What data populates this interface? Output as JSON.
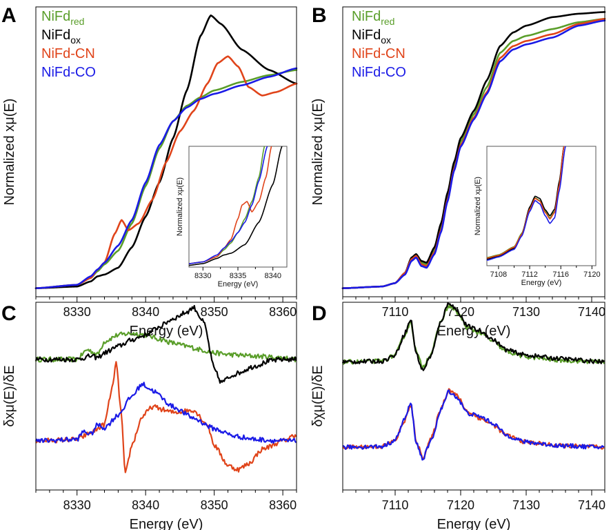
{
  "colors": {
    "NiFd_red": "#5a9e2a",
    "NiFd_ox": "#000000",
    "NiFd_CN": "#e0441a",
    "NiFd_CO": "#1a1ae6"
  },
  "legend": [
    {
      "key": "NiFd_red",
      "base": "NiFd",
      "sub": "red"
    },
    {
      "key": "NiFd_ox",
      "base": "NiFd",
      "sub": "ox"
    },
    {
      "key": "NiFd_CN",
      "base": "NiFd-CN",
      "sub": ""
    },
    {
      "key": "NiFd_CO",
      "base": "NiFd-CO",
      "sub": ""
    }
  ],
  "chart_data": [
    {
      "panel": "A",
      "type": "line",
      "xlabel": "Energy (eV)",
      "ylabel": "Normalized xμ(E)",
      "xlim": [
        8324,
        8362
      ],
      "ylim": [
        -0.05,
        1.65
      ],
      "xticks": [
        8330,
        8340,
        8350,
        8360
      ],
      "legend_position": "top-left",
      "series": [
        {
          "key": "NiFd_red",
          "x": [
            8324,
            8330,
            8332,
            8333,
            8334,
            8336,
            8338,
            8340,
            8342,
            8344,
            8346,
            8348,
            8350,
            8354,
            8358,
            8362
          ],
          "y": [
            0.0,
            0.02,
            0.06,
            0.1,
            0.14,
            0.22,
            0.38,
            0.6,
            0.82,
            0.98,
            1.07,
            1.12,
            1.16,
            1.21,
            1.25,
            1.28
          ]
        },
        {
          "key": "NiFd_ox",
          "x": [
            8324,
            8330,
            8332,
            8333,
            8334,
            8336,
            8338,
            8340,
            8342,
            8344,
            8346,
            8348,
            8349.5,
            8351,
            8354,
            8358,
            8362
          ],
          "y": [
            0.0,
            0.01,
            0.04,
            0.07,
            0.08,
            0.12,
            0.24,
            0.42,
            0.62,
            0.88,
            1.16,
            1.48,
            1.6,
            1.55,
            1.4,
            1.28,
            1.2
          ]
        },
        {
          "key": "NiFd_CN",
          "x": [
            8324,
            8330,
            8332,
            8333,
            8334,
            8335.5,
            8336.5,
            8337.5,
            8339,
            8341,
            8343,
            8345,
            8347,
            8349,
            8350.5,
            8352,
            8353.5,
            8355,
            8357,
            8359,
            8362
          ],
          "y": [
            0.0,
            0.02,
            0.06,
            0.11,
            0.15,
            0.32,
            0.4,
            0.34,
            0.38,
            0.52,
            0.74,
            0.92,
            1.04,
            1.2,
            1.32,
            1.36,
            1.3,
            1.18,
            1.13,
            1.15,
            1.2
          ]
        },
        {
          "key": "NiFd_CO",
          "x": [
            8324,
            8330,
            8332,
            8333,
            8334,
            8336,
            8338,
            8340,
            8342,
            8344,
            8346,
            8348,
            8350,
            8354,
            8358,
            8362
          ],
          "y": [
            0.0,
            0.02,
            0.07,
            0.11,
            0.15,
            0.25,
            0.4,
            0.62,
            0.84,
            0.98,
            1.06,
            1.11,
            1.14,
            1.19,
            1.24,
            1.29
          ]
        }
      ],
      "inset": {
        "xlabel": "Energy (eV)",
        "ylabel": "Normalized xμ(E)",
        "xlim": [
          8328,
          8342
        ],
        "ylim": [
          0.0,
          0.7
        ],
        "xticks": [
          8330,
          8335,
          8340
        ],
        "series": [
          {
            "key": "NiFd_red",
            "x": [
              8328,
              8330,
              8332,
              8333,
              8334,
              8335,
              8336,
              8337,
              8338,
              8338.8
            ],
            "y": [
              0.02,
              0.03,
              0.06,
              0.1,
              0.14,
              0.2,
              0.28,
              0.38,
              0.52,
              0.7
            ]
          },
          {
            "key": "NiFd_ox",
            "x": [
              8328,
              8330,
              8332,
              8333,
              8334,
              8336,
              8338,
              8340,
              8341.3
            ],
            "y": [
              0.01,
              0.02,
              0.05,
              0.07,
              0.08,
              0.13,
              0.26,
              0.48,
              0.7
            ]
          },
          {
            "key": "NiFd_CN",
            "x": [
              8328,
              8330,
              8332,
              8333,
              8334,
              8335,
              8335.6,
              8336.3,
              8337,
              8338,
              8339,
              8339.8
            ],
            "y": [
              0.02,
              0.03,
              0.06,
              0.11,
              0.16,
              0.28,
              0.36,
              0.38,
              0.32,
              0.38,
              0.52,
              0.7
            ]
          },
          {
            "key": "NiFd_CO",
            "x": [
              8328,
              8330,
              8332,
              8333,
              8334,
              8335,
              8336,
              8337,
              8338,
              8339.2
            ],
            "y": [
              0.02,
              0.03,
              0.07,
              0.11,
              0.15,
              0.2,
              0.26,
              0.36,
              0.5,
              0.7
            ]
          }
        ]
      }
    },
    {
      "panel": "B",
      "type": "line",
      "xlabel": "Energy (eV)",
      "ylabel": "Normalized xμ(E)",
      "xlim": [
        7102,
        7142
      ],
      "ylim": [
        -0.05,
        1.65
      ],
      "xticks": [
        7110,
        7120,
        7130,
        7140
      ],
      "legend_position": "top-left",
      "series": [
        {
          "key": "NiFd_red",
          "x": [
            7102,
            7108,
            7110,
            7111.5,
            7112.5,
            7113.2,
            7114,
            7114.8,
            7116,
            7117,
            7118,
            7119,
            7120,
            7122,
            7124,
            7126,
            7128,
            7130,
            7134,
            7138,
            7142
          ],
          "y": [
            0.0,
            0.01,
            0.03,
            0.09,
            0.17,
            0.19,
            0.15,
            0.14,
            0.22,
            0.36,
            0.54,
            0.72,
            0.86,
            1.02,
            1.18,
            1.38,
            1.45,
            1.48,
            1.52,
            1.56,
            1.58
          ]
        },
        {
          "key": "NiFd_ox",
          "x": [
            7102,
            7108,
            7110,
            7111.5,
            7112.5,
            7113.2,
            7114,
            7114.8,
            7116,
            7117,
            7118,
            7119,
            7120,
            7122,
            7124,
            7126,
            7128,
            7130,
            7134,
            7138,
            7142
          ],
          "y": [
            0.0,
            0.01,
            0.03,
            0.09,
            0.18,
            0.2,
            0.16,
            0.15,
            0.24,
            0.38,
            0.56,
            0.74,
            0.88,
            1.04,
            1.22,
            1.42,
            1.5,
            1.54,
            1.59,
            1.61,
            1.62
          ]
        },
        {
          "key": "NiFd_CN",
          "x": [
            7102,
            7108,
            7110,
            7111.5,
            7112.5,
            7113.2,
            7114,
            7114.8,
            7116,
            7117,
            7118,
            7119,
            7120,
            7122,
            7124,
            7126,
            7128,
            7130,
            7134,
            7138,
            7142
          ],
          "y": [
            0.0,
            0.01,
            0.03,
            0.09,
            0.17,
            0.19,
            0.14,
            0.13,
            0.21,
            0.34,
            0.52,
            0.7,
            0.84,
            1.0,
            1.15,
            1.35,
            1.42,
            1.45,
            1.49,
            1.55,
            1.58
          ]
        },
        {
          "key": "NiFd_CO",
          "x": [
            7102,
            7108,
            7110,
            7111.5,
            7112.5,
            7113.2,
            7114,
            7114.8,
            7116,
            7117,
            7118,
            7119,
            7120,
            7122,
            7124,
            7126,
            7128,
            7130,
            7134,
            7138,
            7142
          ],
          "y": [
            0.0,
            0.01,
            0.03,
            0.08,
            0.16,
            0.18,
            0.13,
            0.12,
            0.2,
            0.33,
            0.51,
            0.69,
            0.83,
            0.99,
            1.14,
            1.33,
            1.4,
            1.43,
            1.47,
            1.54,
            1.57
          ]
        }
      ],
      "inset": {
        "xlabel": "Energy (eV)",
        "ylabel": "Normalized xμ(E)",
        "xlim": [
          7106.5,
          7120.5
        ],
        "ylim": [
          0.0,
          0.22
        ],
        "xticks": [
          7108,
          7112,
          7116,
          7120
        ],
        "series": [
          {
            "key": "NiFd_red",
            "x": [
              7106.5,
              7108,
              7110,
              7111,
              7112,
              7112.7,
              7113.3,
              7114,
              7114.6,
              7115.2,
              7115.8,
              7116.4
            ],
            "y": [
              0.015,
              0.02,
              0.035,
              0.06,
              0.105,
              0.125,
              0.12,
              0.1,
              0.088,
              0.1,
              0.15,
              0.22
            ]
          },
          {
            "key": "NiFd_ox",
            "x": [
              7106.5,
              7108,
              7110,
              7111,
              7112,
              7112.7,
              7113.3,
              7114,
              7114.6,
              7115.2,
              7115.8,
              7116.4
            ],
            "y": [
              0.012,
              0.018,
              0.032,
              0.058,
              0.108,
              0.128,
              0.124,
              0.103,
              0.092,
              0.104,
              0.155,
              0.22
            ]
          },
          {
            "key": "NiFd_CN",
            "x": [
              7106.5,
              7108,
              7110,
              7111,
              7112,
              7112.7,
              7113.3,
              7114,
              7114.6,
              7115.2,
              7115.8,
              7116.4
            ],
            "y": [
              0.014,
              0.019,
              0.034,
              0.058,
              0.104,
              0.124,
              0.119,
              0.098,
              0.086,
              0.098,
              0.148,
              0.22
            ]
          },
          {
            "key": "NiFd_CO",
            "x": [
              7106.5,
              7108,
              7110,
              7111,
              7112,
              7112.7,
              7113.3,
              7114,
              7114.6,
              7115.2,
              7115.8,
              7116.6
            ],
            "y": [
              0.01,
              0.016,
              0.03,
              0.055,
              0.1,
              0.12,
              0.114,
              0.092,
              0.078,
              0.088,
              0.138,
              0.22
            ]
          }
        ]
      }
    },
    {
      "panel": "C",
      "type": "line",
      "xlabel": "Energy (eV)",
      "ylabel": "δxμ(E)/δE",
      "xlim": [
        8324,
        8362
      ],
      "ylim": [
        -0.6,
        1.7
      ],
      "xticks": [
        8330,
        8340,
        8350,
        8360
      ],
      "series": [
        {
          "key": "NiFd_red",
          "x": [
            8324,
            8330,
            8331.5,
            8333,
            8334,
            8336,
            8338,
            8340,
            8342,
            8344,
            8346,
            8348,
            8350,
            8352,
            8356,
            8360,
            8362
          ],
          "y": [
            1.0,
            1.0,
            1.12,
            1.06,
            1.22,
            1.3,
            1.32,
            1.3,
            1.25,
            1.2,
            1.16,
            1.12,
            1.08,
            1.06,
            1.04,
            1.02,
            1.0
          ]
        },
        {
          "key": "NiFd_ox",
          "x": [
            8324,
            8330,
            8332,
            8333,
            8334,
            8336,
            8338,
            8340,
            8342,
            8344,
            8346,
            8347,
            8348.5,
            8350,
            8351,
            8353,
            8356,
            8358,
            8360,
            8362
          ],
          "y": [
            1.0,
            1.0,
            1.04,
            1.02,
            1.08,
            1.16,
            1.24,
            1.3,
            1.4,
            1.5,
            1.58,
            1.64,
            1.45,
            0.88,
            0.72,
            0.82,
            0.92,
            0.98,
            1.0,
            1.0
          ]
        },
        {
          "key": "NiFd_CN",
          "x": [
            8324,
            8330,
            8332,
            8334,
            8335,
            8335.7,
            8336.5,
            8337,
            8338,
            8339.5,
            8341,
            8344,
            8347,
            8349,
            8350,
            8352,
            8353.5,
            8355,
            8357,
            8360,
            8362
          ],
          "y": [
            0.0,
            0.02,
            0.1,
            0.2,
            0.6,
            0.95,
            0.3,
            -0.42,
            -0.05,
            0.3,
            0.42,
            0.35,
            0.38,
            0.2,
            -0.05,
            -0.3,
            -0.35,
            -0.28,
            -0.1,
            0.0,
            0.08
          ]
        },
        {
          "key": "NiFd_CO",
          "x": [
            8324,
            8330,
            8331,
            8332,
            8333,
            8334,
            8336,
            8338,
            8339.5,
            8341,
            8344,
            8347,
            8350,
            8353,
            8356,
            8360,
            8362
          ],
          "y": [
            0.0,
            0.02,
            0.12,
            0.08,
            0.2,
            0.16,
            0.32,
            0.55,
            0.7,
            0.62,
            0.42,
            0.28,
            0.15,
            0.06,
            0.02,
            0.0,
            0.0
          ]
        }
      ]
    },
    {
      "panel": "D",
      "type": "line",
      "xlabel": "Energy (eV)",
      "ylabel": "δχμ(E)/δE",
      "xlim": [
        7102,
        7142
      ],
      "ylim": [
        -0.5,
        1.7
      ],
      "xticks": [
        7110,
        7120,
        7130,
        7140
      ],
      "series": [
        {
          "key": "NiFd_red",
          "x": [
            7102,
            7108,
            7110,
            7111.5,
            7112.4,
            7113.2,
            7114.2,
            7115.5,
            7117,
            7118.2,
            7119.5,
            7121,
            7123,
            7125,
            7127,
            7130,
            7135,
            7142
          ],
          "y": [
            1.0,
            1.01,
            1.08,
            1.32,
            1.48,
            1.12,
            0.94,
            1.1,
            1.48,
            1.66,
            1.58,
            1.4,
            1.34,
            1.24,
            1.12,
            1.06,
            1.02,
            1.0
          ]
        },
        {
          "key": "NiFd_ox",
          "x": [
            7102,
            7108,
            7110,
            7111.5,
            7112.4,
            7113.2,
            7114.2,
            7115.5,
            7117,
            7118.2,
            7119.5,
            7121,
            7123,
            7125,
            7127,
            7130,
            7135,
            7142
          ],
          "y": [
            1.0,
            1.01,
            1.08,
            1.34,
            1.5,
            1.1,
            0.9,
            1.08,
            1.48,
            1.7,
            1.6,
            1.42,
            1.36,
            1.26,
            1.14,
            1.08,
            1.04,
            1.0
          ]
        },
        {
          "key": "NiFd_CN",
          "x": [
            7102,
            7108,
            7110,
            7111.5,
            7112.4,
            7113.2,
            7114.2,
            7115.5,
            7117,
            7118.2,
            7119.5,
            7121,
            7123,
            7125,
            7127,
            7130,
            7135,
            7142
          ],
          "y": [
            0.0,
            0.01,
            0.08,
            0.32,
            0.5,
            0.08,
            -0.12,
            0.1,
            0.46,
            0.68,
            0.6,
            0.42,
            0.34,
            0.26,
            0.14,
            0.06,
            0.02,
            0.0
          ]
        },
        {
          "key": "NiFd_CO",
          "x": [
            7102,
            7108,
            7110,
            7111.5,
            7112.4,
            7113.2,
            7114.2,
            7115.5,
            7117,
            7118.2,
            7119.5,
            7121,
            7123,
            7125,
            7127,
            7130,
            7135,
            7142
          ],
          "y": [
            0.0,
            0.01,
            0.08,
            0.34,
            0.52,
            0.06,
            -0.14,
            0.08,
            0.44,
            0.66,
            0.58,
            0.4,
            0.36,
            0.28,
            0.14,
            0.06,
            0.02,
            0.0
          ]
        }
      ]
    }
  ]
}
